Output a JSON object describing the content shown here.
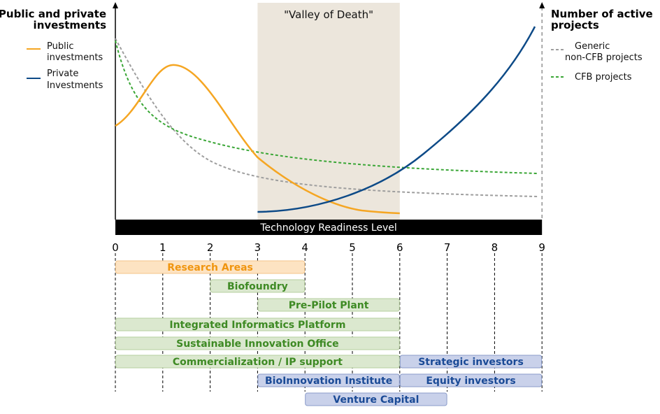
{
  "left_axis": {
    "title_line1": "Public and private",
    "title_line2": "investments",
    "legend": [
      {
        "line1": "Public",
        "line2": "investments",
        "color": "#f5a623"
      },
      {
        "line1": "Private",
        "line2": "Investments",
        "color": "#0d4a87"
      }
    ]
  },
  "right_axis": {
    "title_line1": "Number of active",
    "title_line2": "projects",
    "legend": [
      {
        "line1": "Generic",
        "line2": "non-CFB projects",
        "color": "#9e9e9e"
      },
      {
        "line1": "CFB projects",
        "line2": "",
        "color": "#3aa636"
      }
    ]
  },
  "valley_label": "\"Valley of Death\"",
  "trl_bar_label": "Technology Readiness Level",
  "trl_ticks": [
    "0",
    "1",
    "2",
    "3",
    "4",
    "5",
    "6",
    "7",
    "8",
    "9"
  ],
  "bars": [
    {
      "label": "Research Areas",
      "start": 0,
      "end": 4,
      "row": 0,
      "kind": "research"
    },
    {
      "label": "Biofoundry",
      "start": 2,
      "end": 4,
      "row": 1,
      "kind": "green"
    },
    {
      "label": "Pre-Pilot Plant",
      "start": 3,
      "end": 6,
      "row": 2,
      "kind": "green"
    },
    {
      "label": "Integrated Informatics Platform",
      "start": 0,
      "end": 6,
      "row": 3,
      "kind": "green"
    },
    {
      "label": "Sustainable Innovation Office",
      "start": 0,
      "end": 6,
      "row": 4,
      "kind": "green"
    },
    {
      "label": "Commercialization / IP support",
      "start": 0,
      "end": 6,
      "row": 5,
      "kind": "green"
    },
    {
      "label": "Strategic investors",
      "start": 6,
      "end": 9,
      "row": 5,
      "kind": "blue"
    },
    {
      "label": "BioInnovation Institute",
      "start": 3,
      "end": 6,
      "row": 6,
      "kind": "blue"
    },
    {
      "label": "Equity investors",
      "start": 6,
      "end": 9,
      "row": 6,
      "kind": "blue"
    },
    {
      "label": "Venture Capital",
      "start": 4,
      "end": 7,
      "row": 7,
      "kind": "blue"
    }
  ],
  "colors": {
    "public": "#f5a623",
    "private": "#0d4a87",
    "generic": "#9e9e9e",
    "cfb": "#3aa636",
    "valley_fill": "#ece6dc",
    "research_fill": "#fde3c2",
    "research_stroke": "#f5c58a",
    "research_text": "#f0950f",
    "green_fill": "#dbe8cf",
    "green_stroke": "#b6cf9f",
    "green_text": "#3e8a24",
    "blue_fill": "#c9d1ea",
    "blue_stroke": "#8a9bc9",
    "blue_text": "#1a4a96"
  }
}
